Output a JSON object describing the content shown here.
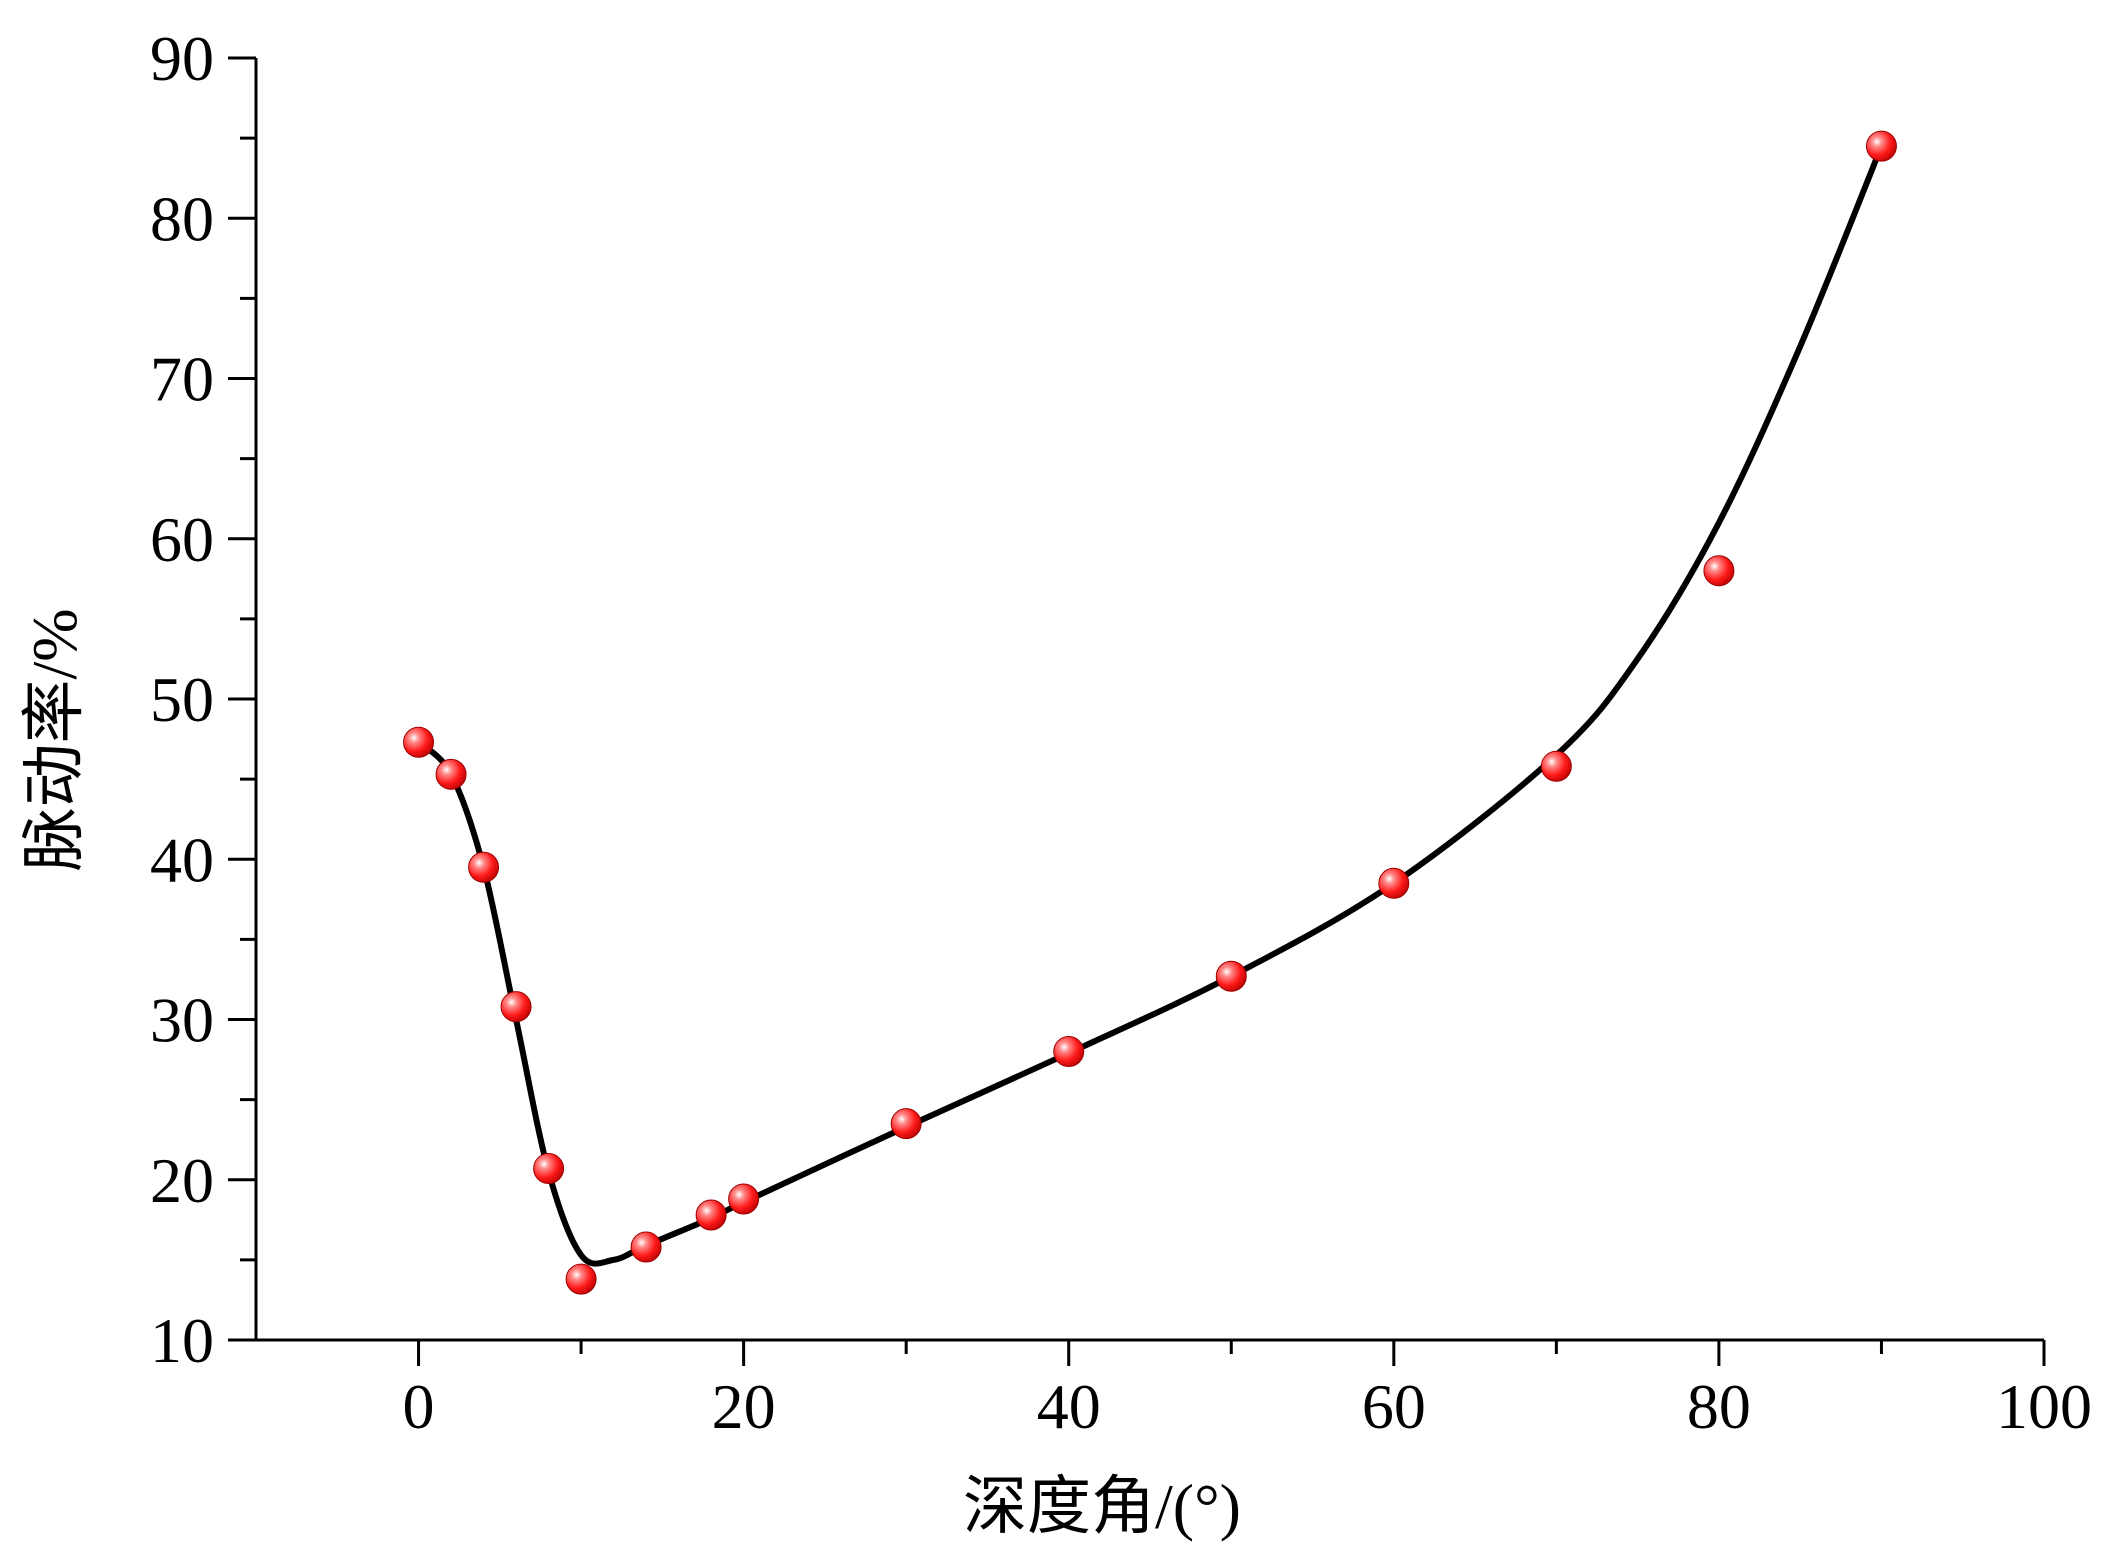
{
  "chart_data": {
    "type": "scatter",
    "title": "",
    "xlabel": "深度角/(°)",
    "ylabel": "脉动率/%",
    "xlim": [
      -10,
      100
    ],
    "ylim": [
      10,
      90
    ],
    "x_ticks": [
      "0",
      "20",
      "40",
      "60",
      "80",
      "100"
    ],
    "y_ticks": [
      "10",
      "20",
      "30",
      "40",
      "50",
      "60",
      "70",
      "80",
      "90"
    ],
    "grid": false,
    "legend": "none",
    "series": [
      {
        "points": [
          {
            "x": 0,
            "y": 47.3
          },
          {
            "x": 2,
            "y": 45.3
          },
          {
            "x": 4,
            "y": 39.5
          },
          {
            "x": 6,
            "y": 30.8
          },
          {
            "x": 8,
            "y": 20.7
          },
          {
            "x": 10,
            "y": 13.8
          },
          {
            "x": 14,
            "y": 15.8
          },
          {
            "x": 18,
            "y": 17.8
          },
          {
            "x": 20,
            "y": 18.8
          },
          {
            "x": 30,
            "y": 23.5
          },
          {
            "x": 40,
            "y": 28.0
          },
          {
            "x": 50,
            "y": 32.7
          },
          {
            "x": 60,
            "y": 38.5
          },
          {
            "x": 70,
            "y": 45.8
          },
          {
            "x": 80,
            "y": 58.0
          },
          {
            "x": 90,
            "y": 84.5
          }
        ],
        "fit_curve": [
          {
            "x": 0,
            "y": 47.3
          },
          {
            "x": 2,
            "y": 45.3
          },
          {
            "x": 4,
            "y": 39.5
          },
          {
            "x": 6,
            "y": 30.0
          },
          {
            "x": 8,
            "y": 20.5
          },
          {
            "x": 10,
            "y": 15.3
          },
          {
            "x": 12,
            "y": 15.0
          },
          {
            "x": 14,
            "y": 15.9
          },
          {
            "x": 18,
            "y": 17.6
          },
          {
            "x": 20,
            "y": 18.6
          },
          {
            "x": 30,
            "y": 23.3
          },
          {
            "x": 40,
            "y": 27.9
          },
          {
            "x": 50,
            "y": 32.7
          },
          {
            "x": 60,
            "y": 38.5
          },
          {
            "x": 70,
            "y": 46.5
          },
          {
            "x": 75,
            "y": 52.5
          },
          {
            "x": 80,
            "y": 61.0
          },
          {
            "x": 85,
            "y": 72.0
          },
          {
            "x": 90,
            "y": 84.5
          }
        ],
        "marker_color": "#ff1a1a",
        "line_color": "#000000"
      }
    ]
  }
}
